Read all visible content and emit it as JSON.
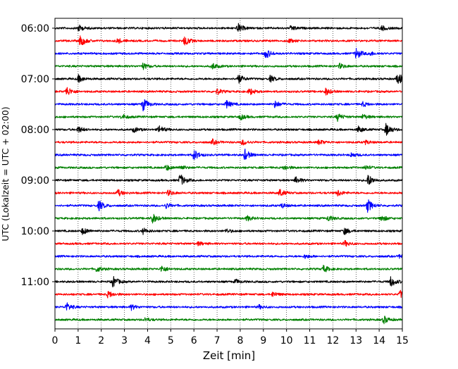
{
  "chart_data": {
    "type": "line",
    "xlabel": "Zeit  [min]",
    "ylabel": "UTC (Lokalzeit = UTC + 02:00)",
    "xlim": [
      0,
      15
    ],
    "x_ticks": [
      0,
      1,
      2,
      3,
      4,
      5,
      6,
      7,
      8,
      9,
      10,
      11,
      12,
      13,
      14,
      15
    ],
    "x_tick_labels": [
      "0",
      "1",
      "2",
      "3",
      "4",
      "5",
      "6",
      "7",
      "8",
      "9",
      "10",
      "11",
      "12",
      "13",
      "14",
      "15"
    ],
    "y_tick_labels": [
      "06:00",
      "07:00",
      "08:00",
      "09:00",
      "10:00",
      "11:00"
    ],
    "trace_interval_minutes": 15,
    "first_trace_time": "06:00",
    "grid": "vertical dotted at each minute",
    "colors": [
      "#000000",
      "#ff0000",
      "#0000ff",
      "#008000"
    ],
    "traces": [
      {
        "start": "06:00",
        "color": "#000000",
        "events": [
          [
            1.0,
            0.55
          ],
          [
            7.9,
            0.7
          ],
          [
            10.2,
            0.4
          ],
          [
            14.1,
            0.4
          ]
        ]
      },
      {
        "start": "06:15",
        "color": "#ff0000",
        "events": [
          [
            1.1,
            0.9
          ],
          [
            2.7,
            0.4
          ],
          [
            5.6,
            0.8
          ],
          [
            10.1,
            0.3
          ]
        ]
      },
      {
        "start": "06:30",
        "color": "#0000ff",
        "events": [
          [
            9.1,
            0.8
          ],
          [
            13.0,
            0.9
          ],
          [
            13.6,
            0.3
          ]
        ]
      },
      {
        "start": "06:45",
        "color": "#008000",
        "events": [
          [
            3.8,
            0.5
          ],
          [
            6.8,
            0.5
          ],
          [
            12.3,
            0.4
          ]
        ]
      },
      {
        "start": "07:00",
        "color": "#000000",
        "events": [
          [
            1.0,
            0.6
          ],
          [
            7.9,
            0.75
          ],
          [
            9.3,
            0.5
          ],
          [
            14.8,
            1.0
          ]
        ]
      },
      {
        "start": "07:15",
        "color": "#ff0000",
        "events": [
          [
            0.5,
            0.8
          ],
          [
            7.0,
            0.45
          ],
          [
            8.4,
            0.55
          ],
          [
            11.7,
            0.55
          ]
        ]
      },
      {
        "start": "07:30",
        "color": "#0000ff",
        "events": [
          [
            3.8,
            1.0
          ],
          [
            7.4,
            0.6
          ],
          [
            9.5,
            0.55
          ],
          [
            13.3,
            0.35
          ]
        ]
      },
      {
        "start": "07:45",
        "color": "#008000",
        "events": [
          [
            2.9,
            0.4
          ],
          [
            8.0,
            0.45
          ],
          [
            12.2,
            0.6
          ],
          [
            13.3,
            0.4
          ]
        ]
      },
      {
        "start": "08:00",
        "color": "#000000",
        "events": [
          [
            1.0,
            0.5
          ],
          [
            3.4,
            0.4
          ],
          [
            4.5,
            0.6
          ],
          [
            13.1,
            0.5
          ],
          [
            14.3,
            1.0
          ]
        ]
      },
      {
        "start": "08:15",
        "color": "#ff0000",
        "events": [
          [
            6.8,
            0.4
          ],
          [
            8.1,
            0.45
          ],
          [
            11.4,
            0.4
          ],
          [
            13.4,
            0.3
          ]
        ]
      },
      {
        "start": "08:30",
        "color": "#0000ff",
        "events": [
          [
            6.0,
            0.85
          ],
          [
            8.2,
            0.85
          ],
          [
            12.8,
            0.35
          ]
        ]
      },
      {
        "start": "08:45",
        "color": "#008000",
        "events": [
          [
            4.8,
            0.45
          ],
          [
            5.4,
            0.4
          ],
          [
            9.9,
            0.4
          ],
          [
            13.4,
            0.35
          ]
        ]
      },
      {
        "start": "09:00",
        "color": "#000000",
        "events": [
          [
            5.4,
            1.0
          ],
          [
            10.4,
            0.5
          ],
          [
            13.5,
            1.0
          ]
        ]
      },
      {
        "start": "09:15",
        "color": "#ff0000",
        "events": [
          [
            2.7,
            0.55
          ],
          [
            4.9,
            0.45
          ],
          [
            9.7,
            0.6
          ],
          [
            12.2,
            0.5
          ]
        ]
      },
      {
        "start": "09:30",
        "color": "#0000ff",
        "events": [
          [
            1.9,
            0.8
          ],
          [
            4.8,
            0.4
          ],
          [
            9.8,
            0.35
          ],
          [
            13.5,
            1.0
          ]
        ]
      },
      {
        "start": "09:45",
        "color": "#008000",
        "events": [
          [
            4.2,
            0.8
          ],
          [
            8.3,
            0.4
          ],
          [
            11.8,
            0.45
          ],
          [
            14.1,
            0.5
          ]
        ]
      },
      {
        "start": "10:00",
        "color": "#000000",
        "events": [
          [
            1.2,
            0.55
          ],
          [
            3.8,
            0.45
          ],
          [
            7.4,
            0.3
          ],
          [
            12.5,
            0.55
          ]
        ]
      },
      {
        "start": "10:15",
        "color": "#ff0000",
        "events": [
          [
            6.2,
            0.3
          ],
          [
            12.5,
            0.45
          ]
        ]
      },
      {
        "start": "10:30",
        "color": "#0000ff",
        "events": [
          [
            10.8,
            0.3
          ],
          [
            14.9,
            0.35
          ]
        ]
      },
      {
        "start": "10:45",
        "color": "#008000",
        "events": [
          [
            1.8,
            0.45
          ],
          [
            4.6,
            0.55
          ],
          [
            11.6,
            0.55
          ]
        ]
      },
      {
        "start": "11:00",
        "color": "#000000",
        "events": [
          [
            2.5,
            0.9
          ],
          [
            7.8,
            0.35
          ],
          [
            14.5,
            0.8
          ]
        ]
      },
      {
        "start": "11:15",
        "color": "#ff0000",
        "events": [
          [
            2.3,
            0.55
          ],
          [
            9.4,
            0.4
          ],
          [
            14.9,
            0.6
          ]
        ]
      },
      {
        "start": "11:30",
        "color": "#0000ff",
        "events": [
          [
            0.5,
            0.65
          ],
          [
            3.3,
            0.4
          ],
          [
            8.8,
            0.3
          ]
        ]
      },
      {
        "start": "11:45",
        "color": "#008000",
        "events": [
          [
            3.9,
            0.3
          ],
          [
            14.2,
            0.6
          ]
        ]
      }
    ]
  }
}
